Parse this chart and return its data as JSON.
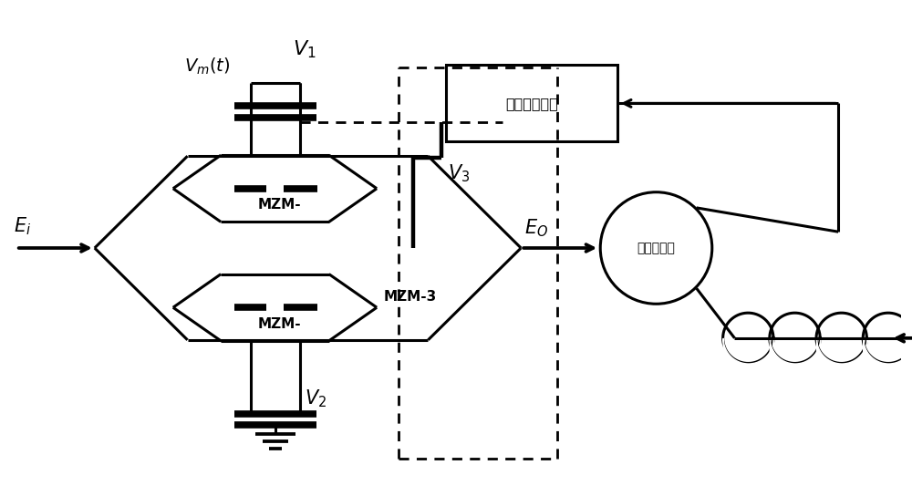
{
  "bg_color": "#ffffff",
  "line_color": "#000000",
  "lw_main": 2.2,
  "lw_thick_bar": 5.5,
  "lw_dash": 2.0,
  "fig_w": 10.0,
  "fig_h": 5.44,
  "dpi": 100,
  "fb_box_label": "反馈控制系统",
  "coupler_label": "光纤耦合器",
  "mzm1_label": "MZM-",
  "mzm2_label": "MZM-",
  "mzm3_label": "MZM-3",
  "ei_label": "$E_i$",
  "eo_label": "$E_O$",
  "vm_label": "$V_m(t)$",
  "v1_label": "$V_1$",
  "v2_label": "$V_2$",
  "v3_label": "$V_3$"
}
